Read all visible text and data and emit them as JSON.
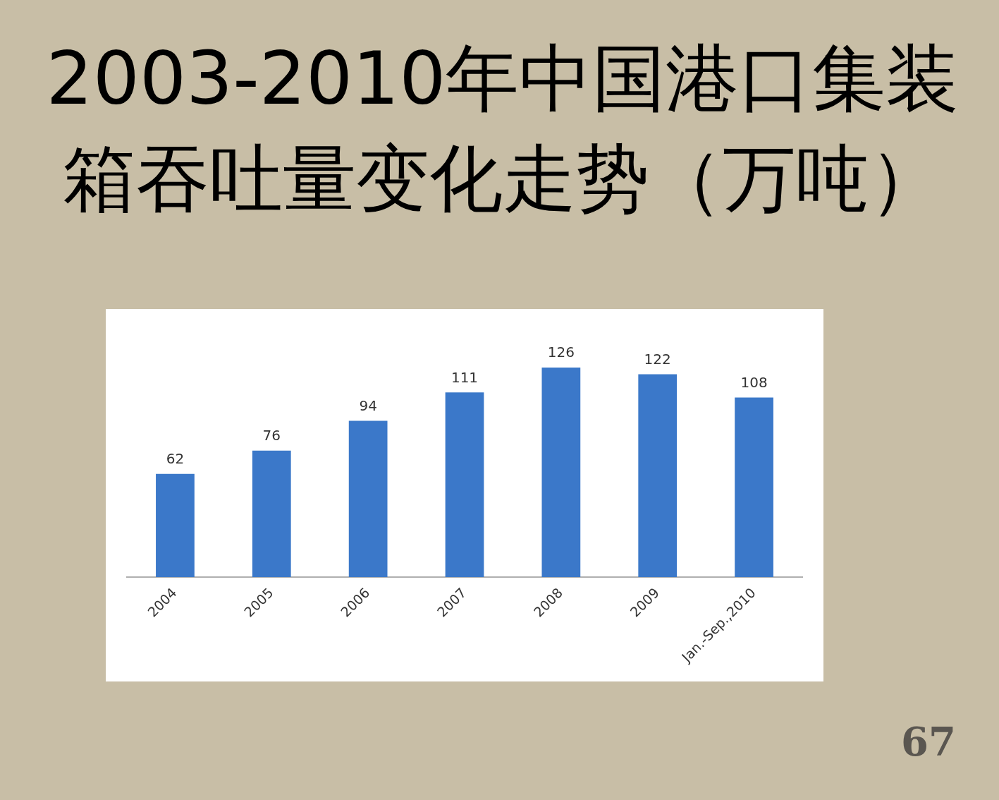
{
  "chart_data": {
    "type": "bar",
    "title": "2003-2010年中国港口集装箱吞吐量变化走势（万吨）",
    "categories": [
      "2004",
      "2005",
      "2006",
      "2007",
      "2008",
      "2009",
      "Jan.-Sep.,2010"
    ],
    "values": [
      62,
      76,
      94,
      111,
      126,
      122,
      108
    ],
    "color": "#3b78c9",
    "data_labels": true,
    "tick_labels": "x",
    "annotations": [
      "67"
    ]
  }
}
